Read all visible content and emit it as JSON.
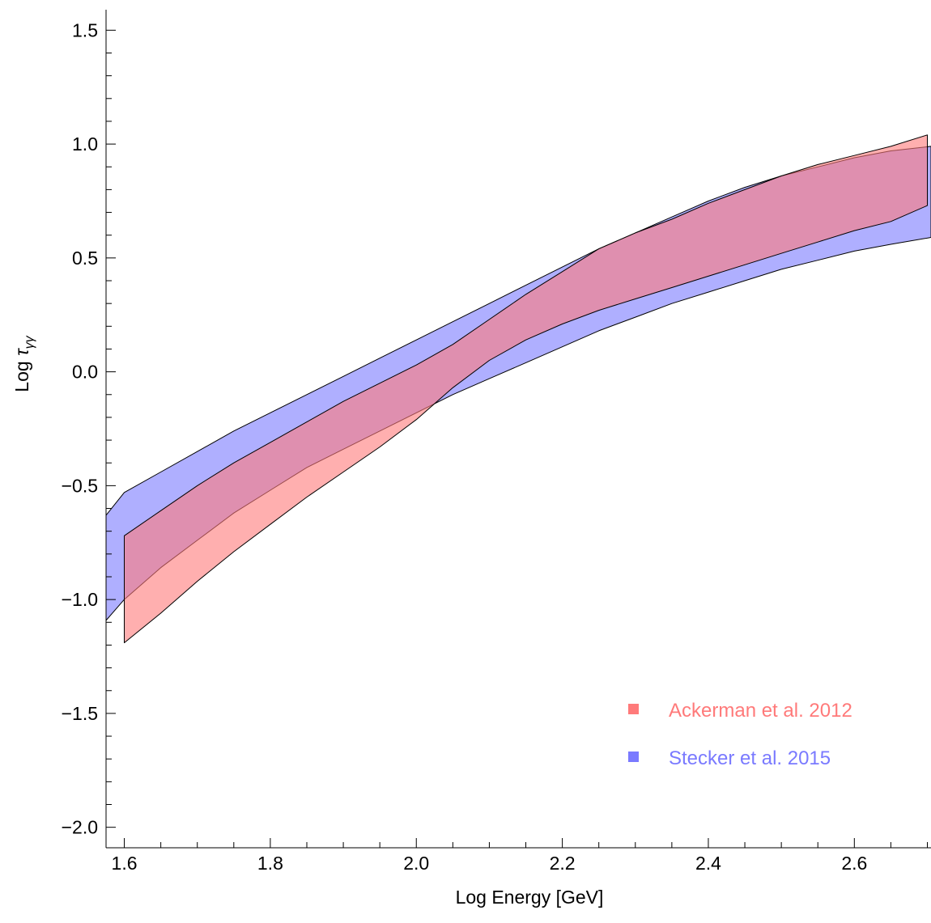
{
  "chart_data": {
    "type": "area",
    "title": "",
    "xlabel": "Log Energy [GeV]",
    "ylabel": {
      "prefix": "Log ",
      "symbol": "τ",
      "subscript": "γγ"
    },
    "xlim": [
      1.575,
      2.705
    ],
    "ylim": [
      -2.09,
      1.59
    ],
    "x_ticks": [
      {
        "value": 1.6,
        "label": "1.6"
      },
      {
        "value": 1.8,
        "label": "1.8"
      },
      {
        "value": 2.0,
        "label": "2.0"
      },
      {
        "value": 2.2,
        "label": "2.2"
      },
      {
        "value": 2.4,
        "label": "2.4"
      },
      {
        "value": 2.6,
        "label": "2.6"
      }
    ],
    "y_ticks": [
      {
        "value": 1.5,
        "label": "1.5"
      },
      {
        "value": 1.0,
        "label": "1.0"
      },
      {
        "value": 0.5,
        "label": "0.5"
      },
      {
        "value": 0.0,
        "label": "0.0"
      },
      {
        "value": -0.5,
        "label": "−0.5"
      },
      {
        "value": -1.0,
        "label": "−1.0"
      },
      {
        "value": -1.5,
        "label": "−1.5"
      },
      {
        "value": -2.0,
        "label": "−2.0"
      }
    ],
    "grid": false,
    "legend_position": "bottom-right",
    "series": [
      {
        "name": "Stecker et al. 2015",
        "color": "#7a7aff",
        "x": [
          1.57,
          1.6,
          1.65,
          1.7,
          1.75,
          1.8,
          1.85,
          1.9,
          1.95,
          2.0,
          2.05,
          2.1,
          2.15,
          2.2,
          2.25,
          2.3,
          2.35,
          2.4,
          2.45,
          2.5,
          2.55,
          2.6,
          2.65,
          2.705
        ],
        "upper": [
          -0.65,
          -0.53,
          -0.44,
          -0.35,
          -0.26,
          -0.18,
          -0.1,
          -0.02,
          0.06,
          0.14,
          0.22,
          0.3,
          0.38,
          0.46,
          0.54,
          0.61,
          0.68,
          0.75,
          0.81,
          0.86,
          0.9,
          0.94,
          0.97,
          0.99
        ],
        "lower": [
          -1.11,
          -1.0,
          -0.86,
          -0.74,
          -0.62,
          -0.52,
          -0.42,
          -0.34,
          -0.26,
          -0.18,
          -0.1,
          -0.03,
          0.04,
          0.11,
          0.18,
          0.24,
          0.3,
          0.35,
          0.4,
          0.45,
          0.49,
          0.53,
          0.56,
          0.59
        ]
      },
      {
        "name": "Ackerman et al. 2012",
        "color": "#ff7a7a",
        "x": [
          1.6,
          1.65,
          1.7,
          1.75,
          1.8,
          1.85,
          1.9,
          1.95,
          2.0,
          2.05,
          2.1,
          2.15,
          2.2,
          2.25,
          2.3,
          2.35,
          2.4,
          2.45,
          2.5,
          2.55,
          2.6,
          2.65,
          2.7
        ],
        "upper": [
          -0.72,
          -0.61,
          -0.5,
          -0.4,
          -0.31,
          -0.22,
          -0.13,
          -0.05,
          0.03,
          0.12,
          0.23,
          0.34,
          0.44,
          0.54,
          0.61,
          0.67,
          0.74,
          0.8,
          0.86,
          0.91,
          0.95,
          0.99,
          1.04
        ],
        "lower": [
          -1.19,
          -1.06,
          -0.92,
          -0.79,
          -0.67,
          -0.55,
          -0.44,
          -0.33,
          -0.21,
          -0.07,
          0.05,
          0.14,
          0.21,
          0.27,
          0.32,
          0.37,
          0.42,
          0.47,
          0.52,
          0.57,
          0.62,
          0.66,
          0.73
        ]
      }
    ]
  }
}
